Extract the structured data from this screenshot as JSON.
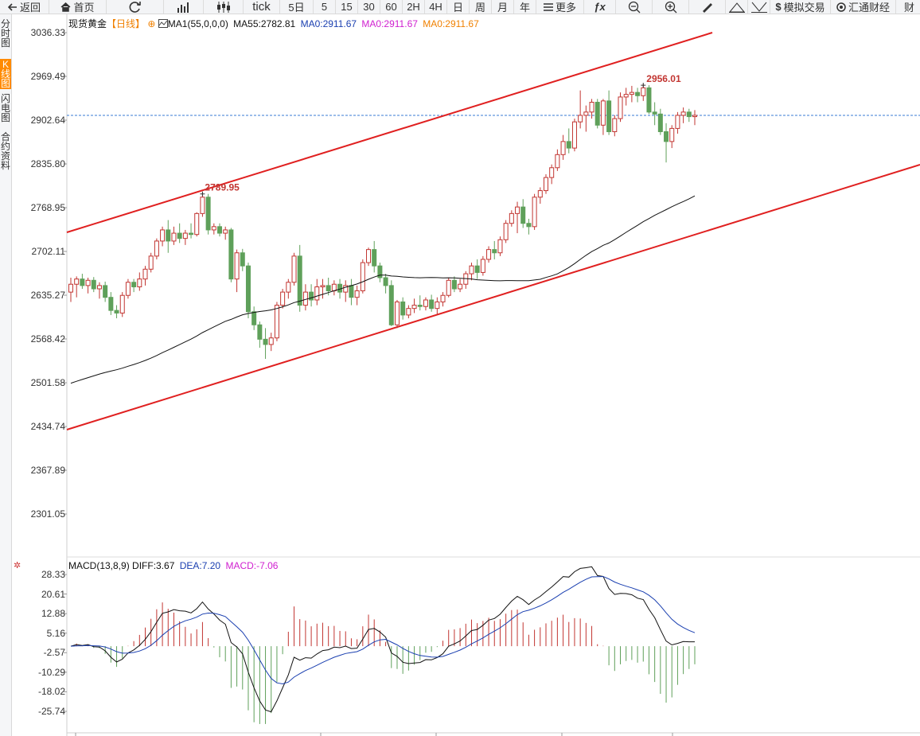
{
  "toolbar": {
    "back": "返回",
    "home": "首页",
    "tick": "tick",
    "periods": [
      "5日",
      "5",
      "15",
      "30",
      "60",
      "2H",
      "4H",
      "日",
      "周",
      "月",
      "年"
    ],
    "more": "更多",
    "fx": "ƒx",
    "sim_trade": "模拟交易",
    "huitong": "汇通财经",
    "cut_off": "财"
  },
  "sidebar": {
    "tabs": [
      {
        "label": [
          "分",
          "时",
          "图"
        ],
        "active": false
      },
      {
        "label": [
          "K",
          "线",
          "图"
        ],
        "active": true
      },
      {
        "label": [
          "闪",
          "电",
          "图"
        ],
        "active": false
      },
      {
        "label": [
          "合",
          "约",
          "资",
          "料"
        ],
        "active": false
      }
    ]
  },
  "main_header": {
    "symbol": "现货黄金",
    "period": "【日线】",
    "plus": "⊕",
    "ma1": "MA1(55,0,0,0)",
    "ma55": "MA55:2782.81",
    "ma0_a": "MA0:2911.67",
    "ma0_b": "MA0:2911.67",
    "ma0_c": "MA0:2911.67"
  },
  "macd_header": {
    "title": "MACD(13,8,9)",
    "diff": "DIFF:3.67",
    "dea": "DEA:7.20",
    "macd": "MACD:-7.06"
  },
  "price_axis": [
    "3036.33",
    "2969.49",
    "2902.64",
    "2835.80",
    "2768.95",
    "2702.11",
    "2635.27",
    "2568.42",
    "2501.58",
    "2434.74",
    "2367.89",
    "2301.05"
  ],
  "macd_axis": [
    "28.33",
    "20.61",
    "12.88",
    "5.16",
    "-2.57",
    "-10.29",
    "-18.02",
    "-25.74"
  ],
  "annotations": {
    "high_left": "2789.95",
    "high_right": "2956.01"
  },
  "colors": {
    "up": "#c23531",
    "down": "#5fa05a",
    "channel": "#e02020",
    "ma": "#111111",
    "dea": "#1a3fb0",
    "macd": "#e020e0",
    "ma0_blue": "#1a3fb0",
    "ma0_magenta": "#d020d0",
    "ma0_orange": "#f08000",
    "last_line": "#3a7bd5"
  },
  "chart_data": {
    "type": "candlestick",
    "price_range": [
      2301.05,
      3036.33
    ],
    "ohlc": [
      [
        2640,
        2662,
        2625,
        2652
      ],
      [
        2652,
        2664,
        2632,
        2660
      ],
      [
        2660,
        2668,
        2645,
        2650
      ],
      [
        2650,
        2662,
        2638,
        2658
      ],
      [
        2658,
        2663,
        2640,
        2645
      ],
      [
        2645,
        2655,
        2630,
        2650
      ],
      [
        2650,
        2656,
        2625,
        2632
      ],
      [
        2632,
        2640,
        2605,
        2612
      ],
      [
        2612,
        2620,
        2600,
        2608
      ],
      [
        2608,
        2640,
        2602,
        2635
      ],
      [
        2635,
        2660,
        2630,
        2655
      ],
      [
        2655,
        2660,
        2640,
        2648
      ],
      [
        2648,
        2670,
        2642,
        2660
      ],
      [
        2660,
        2680,
        2650,
        2675
      ],
      [
        2675,
        2700,
        2670,
        2695
      ],
      [
        2695,
        2722,
        2690,
        2718
      ],
      [
        2718,
        2740,
        2710,
        2735
      ],
      [
        2735,
        2750,
        2700,
        2718
      ],
      [
        2718,
        2740,
        2712,
        2730
      ],
      [
        2730,
        2745,
        2715,
        2722
      ],
      [
        2722,
        2735,
        2712,
        2730
      ],
      [
        2730,
        2745,
        2722,
        2728
      ],
      [
        2728,
        2762,
        2725,
        2760
      ],
      [
        2760,
        2792,
        2755,
        2785
      ],
      [
        2785,
        2790,
        2728,
        2735
      ],
      [
        2735,
        2745,
        2728,
        2740
      ],
      [
        2740,
        2745,
        2725,
        2730
      ],
      [
        2730,
        2740,
        2720,
        2735
      ],
      [
        2735,
        2738,
        2655,
        2660
      ],
      [
        2660,
        2705,
        2640,
        2700
      ],
      [
        2700,
        2706,
        2672,
        2680
      ],
      [
        2680,
        2685,
        2600,
        2610
      ],
      [
        2610,
        2618,
        2582,
        2590
      ],
      [
        2590,
        2595,
        2555,
        2568
      ],
      [
        2568,
        2585,
        2538,
        2560
      ],
      [
        2560,
        2578,
        2550,
        2570
      ],
      [
        2570,
        2625,
        2565,
        2620
      ],
      [
        2620,
        2645,
        2615,
        2640
      ],
      [
        2640,
        2660,
        2630,
        2655
      ],
      [
        2655,
        2700,
        2650,
        2695
      ],
      [
        2695,
        2712,
        2610,
        2620
      ],
      [
        2620,
        2652,
        2612,
        2640
      ],
      [
        2640,
        2652,
        2618,
        2628
      ],
      [
        2628,
        2660,
        2620,
        2648
      ],
      [
        2648,
        2660,
        2630,
        2650
      ],
      [
        2650,
        2662,
        2635,
        2642
      ],
      [
        2642,
        2658,
        2635,
        2652
      ],
      [
        2652,
        2660,
        2630,
        2640
      ],
      [
        2640,
        2658,
        2625,
        2650
      ],
      [
        2650,
        2660,
        2620,
        2632
      ],
      [
        2632,
        2650,
        2620,
        2642
      ],
      [
        2642,
        2690,
        2638,
        2685
      ],
      [
        2685,
        2708,
        2680,
        2705
      ],
      [
        2705,
        2718,
        2670,
        2680
      ],
      [
        2680,
        2685,
        2655,
        2662
      ],
      [
        2662,
        2668,
        2638,
        2650
      ],
      [
        2650,
        2658,
        2588,
        2590
      ],
      [
        2590,
        2628,
        2585,
        2625
      ],
      [
        2625,
        2632,
        2598,
        2605
      ],
      [
        2605,
        2620,
        2600,
        2615
      ],
      [
        2615,
        2630,
        2608,
        2620
      ],
      [
        2620,
        2635,
        2612,
        2618
      ],
      [
        2618,
        2632,
        2612,
        2628
      ],
      [
        2628,
        2636,
        2610,
        2615
      ],
      [
        2615,
        2632,
        2605,
        2625
      ],
      [
        2625,
        2640,
        2618,
        2635
      ],
      [
        2635,
        2662,
        2632,
        2658
      ],
      [
        2658,
        2664,
        2640,
        2645
      ],
      [
        2645,
        2660,
        2640,
        2652
      ],
      [
        2652,
        2672,
        2645,
        2668
      ],
      [
        2668,
        2685,
        2658,
        2680
      ],
      [
        2680,
        2690,
        2660,
        2670
      ],
      [
        2670,
        2695,
        2665,
        2690
      ],
      [
        2690,
        2710,
        2685,
        2705
      ],
      [
        2705,
        2718,
        2690,
        2700
      ],
      [
        2700,
        2725,
        2695,
        2720
      ],
      [
        2720,
        2750,
        2715,
        2745
      ],
      [
        2745,
        2765,
        2740,
        2760
      ],
      [
        2760,
        2778,
        2730,
        2770
      ],
      [
        2770,
        2782,
        2738,
        2745
      ],
      [
        2745,
        2752,
        2728,
        2740
      ],
      [
        2740,
        2790,
        2735,
        2785
      ],
      [
        2785,
        2800,
        2775,
        2795
      ],
      [
        2795,
        2820,
        2790,
        2815
      ],
      [
        2815,
        2835,
        2805,
        2830
      ],
      [
        2830,
        2858,
        2825,
        2850
      ],
      [
        2850,
        2880,
        2842,
        2870
      ],
      [
        2870,
        2890,
        2852,
        2860
      ],
      [
        2860,
        2905,
        2855,
        2900
      ],
      [
        2900,
        2948,
        2890,
        2910
      ],
      [
        2910,
        2925,
        2885,
        2915
      ],
      [
        2915,
        2935,
        2905,
        2930
      ],
      [
        2930,
        2935,
        2890,
        2895
      ],
      [
        2895,
        2935,
        2880,
        2932
      ],
      [
        2932,
        2948,
        2880,
        2885
      ],
      [
        2885,
        2910,
        2878,
        2905
      ],
      [
        2905,
        2945,
        2900,
        2938
      ],
      [
        2938,
        2952,
        2925,
        2942
      ],
      [
        2942,
        2955,
        2930,
        2945
      ],
      [
        2945,
        2952,
        2930,
        2940
      ],
      [
        2940,
        2958,
        2932,
        2952
      ],
      [
        2952,
        2956,
        2912,
        2915
      ],
      [
        2915,
        2930,
        2895,
        2912
      ],
      [
        2912,
        2920,
        2880,
        2885
      ],
      [
        2885,
        2898,
        2838,
        2870
      ],
      [
        2870,
        2895,
        2860,
        2890
      ],
      [
        2890,
        2915,
        2882,
        2910
      ],
      [
        2910,
        2922,
        2898,
        2915
      ],
      [
        2915,
        2920,
        2900,
        2908
      ],
      [
        2908,
        2918,
        2895,
        2910
      ]
    ],
    "ma55_start": 2498,
    "ma55_end": 2782.81,
    "macd_range": [
      -31,
      31
    ]
  }
}
